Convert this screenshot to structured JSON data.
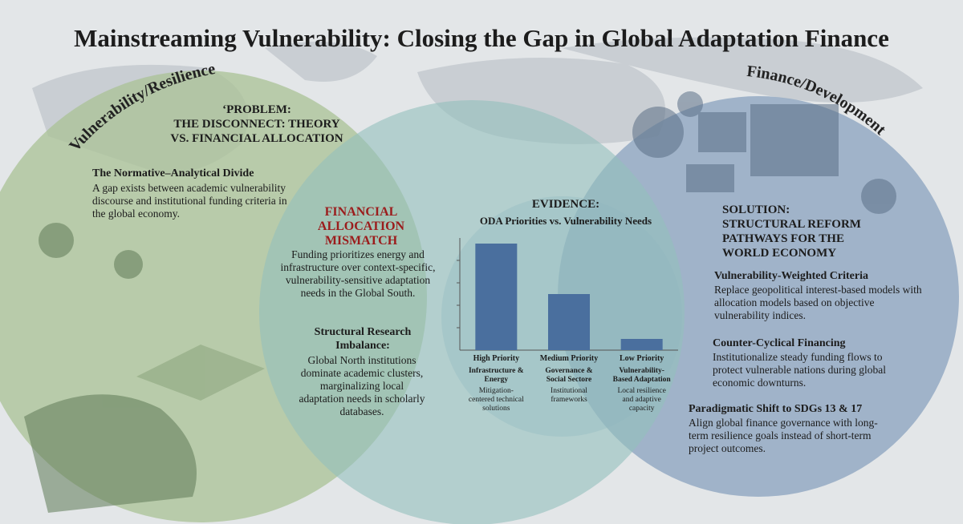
{
  "title": "Mainstreaming Vulnerability: Closing the Gap in Global Adaptation Finance",
  "circles": {
    "left": "Vulnerability/Resilience",
    "right": "Finance/Development"
  },
  "problem": {
    "heading": [
      "‘PROBLEM:",
      "THE DISCONNECT: THEORY",
      "VS. FINANCIAL ALLOCATION"
    ],
    "subheading": "The Normative–Analytical Divide",
    "text": "A gap exists between academic vulnerability discourse and institutional funding criteria in the global economy."
  },
  "mismatch": {
    "heading": [
      "FINANCIAL",
      "ALLOCATION",
      "MISMATCH"
    ],
    "text": "Funding prioritizes energy and infrastructure over context-specific, vulnerability-sensitive adaptation needs in the Global South.",
    "subheading": "Structural Research Imbalance:",
    "subtext": "Global North institutions dominate academic clusters, marginalizing local adaptation needs in scholarly databases."
  },
  "evidence": {
    "heading": "EVIDENCE:",
    "subtitle": "ODA Priorities vs. Vulnerability Needs",
    "chart": {
      "type": "bar",
      "categories": [
        "High Priority",
        "Medium Priority",
        "Low Priority"
      ],
      "sectors": [
        "Infrastructure & Energy",
        "Governance & Social Sectore",
        "Vulnerability-Based Adaptation"
      ],
      "descriptions": [
        "Mitigation-centered technical solutions",
        "Institutional frameworks",
        "Local resilience and adaptive capacity"
      ],
      "values": [
        4.75,
        2.5,
        0.5
      ],
      "color": "#4a6f9e",
      "ylim": [
        0,
        5
      ],
      "yticks": [
        1,
        2,
        3,
        4
      ]
    }
  },
  "solution": {
    "heading": [
      "SOLUTION:",
      "STRUCTURAL REFORM",
      "PATHWAYS FOR THE",
      "WORLD ECONOMY"
    ],
    "items": [
      {
        "title": "Vulnerability-Weighted Criteria",
        "text": "Replace geopolitical interest-based models with allocation models based on objective vulnerability indices."
      },
      {
        "title": "Counter-Cyclical Financing",
        "text": "Institutionalize steady funding flows to protect vulnerable nations during global economic downturns."
      },
      {
        "title": "Paradigmatic Shift to SDGs 13 & 17",
        "text": "Align global finance governance with long-term resilience goals instead of short-term project outcomes."
      }
    ]
  }
}
